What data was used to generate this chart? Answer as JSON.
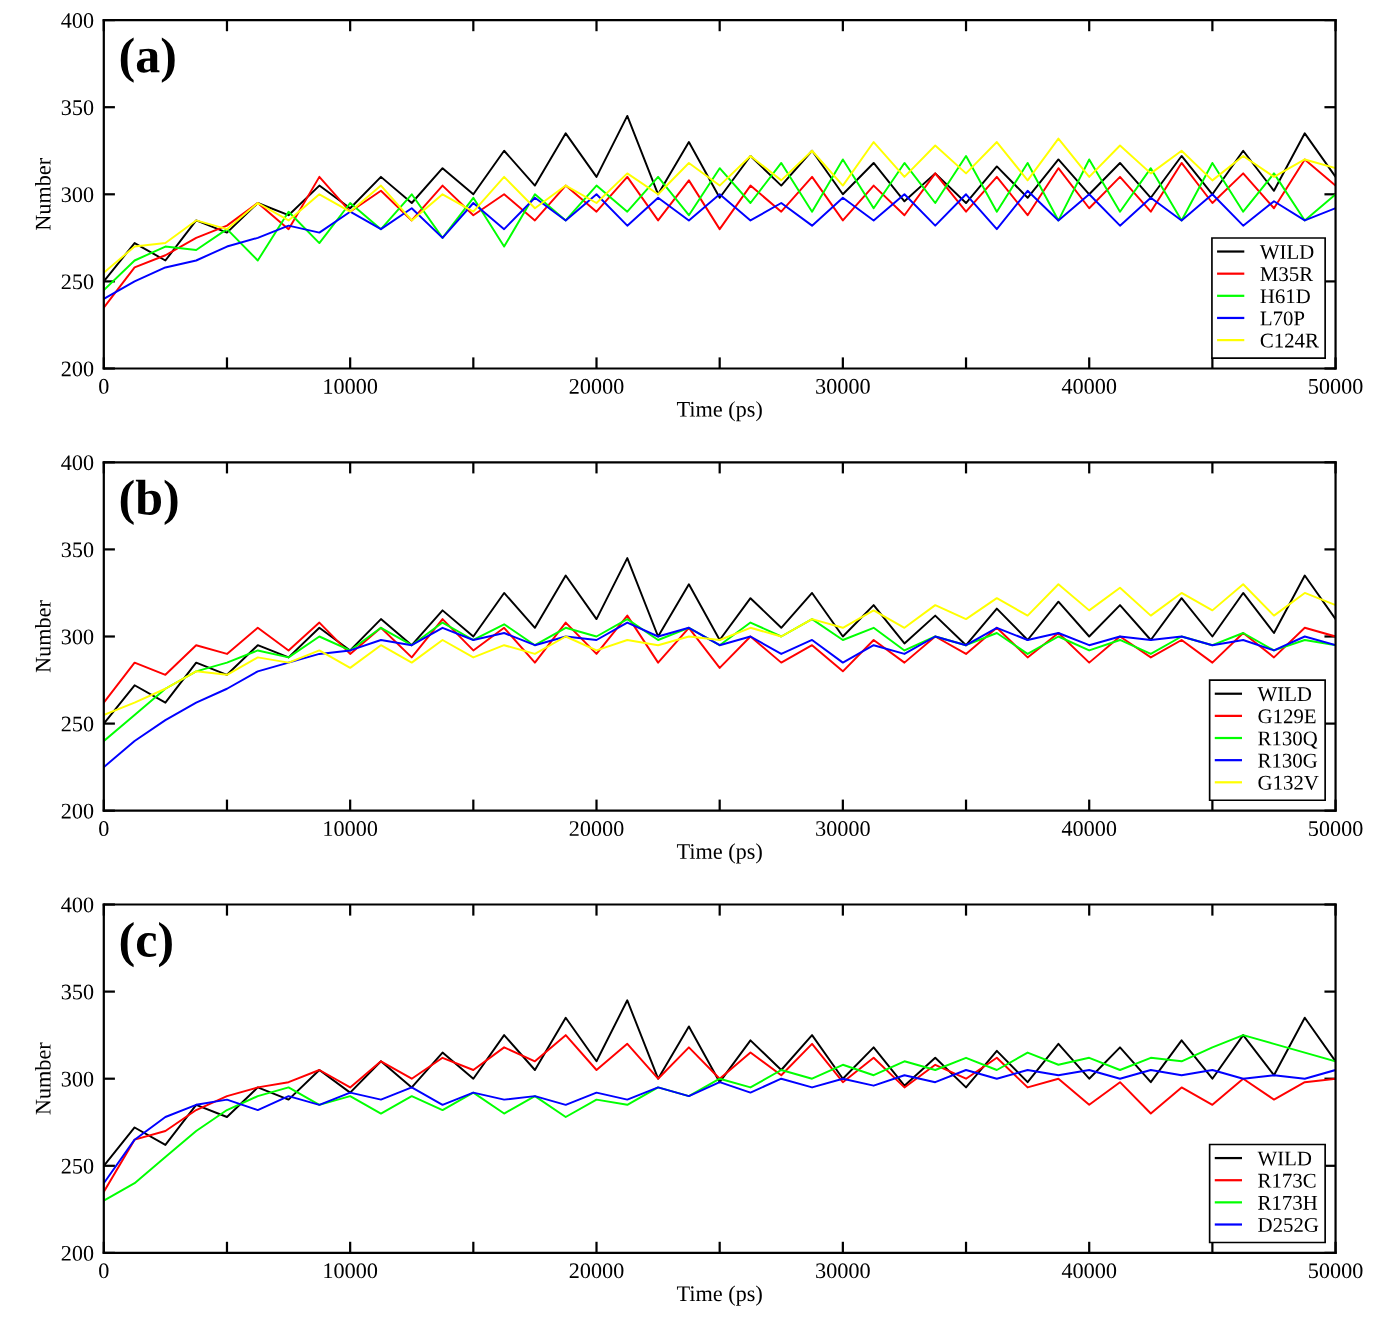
{
  "chart_data": [
    {
      "type": "line",
      "title": "(a)",
      "xlabel": "Time (ps)",
      "ylabel": "Number",
      "legend": "bottom right",
      "grid": false,
      "x": [
        0,
        1250,
        2500,
        3750,
        5000,
        6250,
        7500,
        8750,
        10000,
        11250,
        12500,
        13750,
        15000,
        16250,
        17500,
        18750,
        20000,
        21250,
        22500,
        23750,
        25000,
        26250,
        27500,
        28750,
        30000,
        31250,
        32500,
        33750,
        35000,
        36250,
        37500,
        38750,
        40000,
        41250,
        42500,
        43750,
        45000,
        46250,
        47500,
        48750,
        50000
      ],
      "xlim": [
        0,
        50000
      ],
      "ylim": [
        200,
        400
      ],
      "xticks": [
        0,
        {
          "value": 5000,
          "label": null
        },
        10000,
        {
          "value": 15000,
          "label": null
        },
        20000,
        {
          "value": 25000,
          "label": null
        },
        30000,
        {
          "value": 35000,
          "label": null
        },
        40000,
        {
          "value": 45000,
          "label": null
        },
        50000
      ],
      "yticks": [
        200,
        250,
        300,
        350,
        400
      ],
      "series": [
        {
          "name": "WILD",
          "color": "#000000",
          "values": [
            250,
            272,
            262,
            285,
            278,
            295,
            288,
            305,
            292,
            310,
            295,
            315,
            300,
            325,
            305,
            335,
            310,
            345,
            300,
            330,
            298,
            322,
            305,
            325,
            300,
            318,
            296,
            312,
            295,
            316,
            298,
            320,
            300,
            318,
            298,
            322,
            300,
            325,
            302,
            335,
            310
          ]
        },
        {
          "name": "M35R",
          "color": "#ff0000",
          "values": [
            235,
            258,
            265,
            275,
            282,
            295,
            280,
            310,
            290,
            302,
            285,
            305,
            288,
            300,
            285,
            305,
            290,
            310,
            285,
            308,
            280,
            305,
            290,
            310,
            285,
            305,
            288,
            312,
            290,
            310,
            288,
            315,
            292,
            310,
            290,
            318,
            295,
            312,
            292,
            320,
            305
          ]
        },
        {
          "name": "H61D",
          "color": "#00ff00",
          "values": [
            245,
            262,
            270,
            268,
            280,
            262,
            290,
            272,
            295,
            280,
            300,
            275,
            298,
            270,
            300,
            285,
            305,
            290,
            310,
            288,
            315,
            295,
            318,
            290,
            320,
            292,
            318,
            295,
            322,
            290,
            318,
            285,
            320,
            290,
            315,
            285,
            318,
            290,
            312,
            285,
            300
          ]
        },
        {
          "name": "L70P",
          "color": "#0000ff",
          "values": [
            240,
            250,
            258,
            262,
            270,
            275,
            282,
            278,
            290,
            280,
            292,
            275,
            295,
            280,
            298,
            285,
            300,
            282,
            298,
            285,
            300,
            285,
            295,
            282,
            298,
            285,
            300,
            282,
            300,
            280,
            302,
            285,
            300,
            282,
            298,
            285,
            300,
            282,
            296,
            285,
            292
          ]
        },
        {
          "name": "C124R",
          "color": "#ffff00",
          "values": [
            255,
            270,
            272,
            285,
            280,
            295,
            285,
            300,
            290,
            305,
            285,
            300,
            290,
            310,
            292,
            305,
            295,
            312,
            300,
            318,
            305,
            322,
            308,
            325,
            305,
            330,
            310,
            328,
            312,
            330,
            308,
            332,
            310,
            328,
            312,
            325,
            308,
            322,
            310,
            320,
            315
          ]
        }
      ]
    },
    {
      "type": "line",
      "title": "(b)",
      "xlabel": "Time (ps)",
      "ylabel": "Number",
      "legend": "bottom right",
      "grid": false,
      "x": [
        0,
        1250,
        2500,
        3750,
        5000,
        6250,
        7500,
        8750,
        10000,
        11250,
        12500,
        13750,
        15000,
        16250,
        17500,
        18750,
        20000,
        21250,
        22500,
        23750,
        25000,
        26250,
        27500,
        28750,
        30000,
        31250,
        32500,
        33750,
        35000,
        36250,
        37500,
        38750,
        40000,
        41250,
        42500,
        43750,
        45000,
        46250,
        47500,
        48750,
        50000
      ],
      "xlim": [
        0,
        50000
      ],
      "ylim": [
        200,
        400
      ],
      "xticks": [
        0,
        {
          "value": 5000,
          "label": null
        },
        10000,
        {
          "value": 15000,
          "label": null
        },
        20000,
        {
          "value": 25000,
          "label": null
        },
        30000,
        {
          "value": 35000,
          "label": null
        },
        40000,
        {
          "value": 45000,
          "label": null
        },
        50000
      ],
      "yticks": [
        200,
        250,
        300,
        350,
        400
      ],
      "series": [
        {
          "name": "WILD",
          "color": "#000000",
          "values": [
            250,
            272,
            262,
            285,
            278,
            295,
            288,
            305,
            292,
            310,
            295,
            315,
            300,
            325,
            305,
            335,
            310,
            345,
            300,
            330,
            298,
            322,
            305,
            325,
            300,
            318,
            296,
            312,
            295,
            316,
            298,
            320,
            300,
            318,
            298,
            322,
            300,
            325,
            302,
            335,
            310
          ]
        },
        {
          "name": "G129E",
          "color": "#ff0000",
          "values": [
            262,
            285,
            278,
            295,
            290,
            305,
            292,
            308,
            290,
            305,
            288,
            310,
            292,
            305,
            285,
            308,
            290,
            312,
            285,
            305,
            282,
            300,
            285,
            295,
            280,
            298,
            285,
            300,
            290,
            305,
            288,
            302,
            285,
            300,
            288,
            298,
            285,
            302,
            288,
            305,
            300
          ]
        },
        {
          "name": "R130Q",
          "color": "#00ff00",
          "values": [
            240,
            255,
            270,
            280,
            285,
            292,
            288,
            300,
            292,
            305,
            295,
            308,
            298,
            307,
            295,
            305,
            300,
            310,
            298,
            305,
            295,
            308,
            300,
            310,
            298,
            305,
            292,
            300,
            295,
            302,
            290,
            300,
            292,
            298,
            290,
            300,
            295,
            302,
            292,
            298,
            295
          ]
        },
        {
          "name": "R130G",
          "color": "#0000ff",
          "values": [
            225,
            240,
            252,
            262,
            270,
            280,
            285,
            290,
            292,
            298,
            295,
            305,
            298,
            302,
            295,
            300,
            298,
            308,
            300,
            305,
            295,
            300,
            290,
            298,
            285,
            295,
            290,
            300,
            295,
            305,
            298,
            302,
            295,
            300,
            298,
            300,
            295,
            298,
            292,
            300,
            295
          ]
        },
        {
          "name": "G132V",
          "color": "#ffff00",
          "values": [
            255,
            262,
            270,
            280,
            278,
            288,
            285,
            292,
            282,
            295,
            285,
            298,
            288,
            295,
            290,
            300,
            292,
            298,
            295,
            300,
            298,
            305,
            300,
            310,
            305,
            315,
            305,
            318,
            310,
            322,
            312,
            330,
            315,
            328,
            312,
            325,
            315,
            330,
            312,
            325,
            318
          ]
        }
      ]
    },
    {
      "type": "line",
      "title": "(c)",
      "xlabel": "Time (ps)",
      "ylabel": "Number",
      "legend": "bottom right",
      "grid": false,
      "x": [
        0,
        1250,
        2500,
        3750,
        5000,
        6250,
        7500,
        8750,
        10000,
        11250,
        12500,
        13750,
        15000,
        16250,
        17500,
        18750,
        20000,
        21250,
        22500,
        23750,
        25000,
        26250,
        27500,
        28750,
        30000,
        31250,
        32500,
        33750,
        35000,
        36250,
        37500,
        38750,
        40000,
        41250,
        42500,
        43750,
        45000,
        46250,
        47500,
        48750,
        50000
      ],
      "xlim": [
        0,
        50000
      ],
      "ylim": [
        200,
        400
      ],
      "xticks": [
        0,
        {
          "value": 5000,
          "label": null
        },
        10000,
        {
          "value": 15000,
          "label": null
        },
        20000,
        {
          "value": 25000,
          "label": null
        },
        30000,
        {
          "value": 35000,
          "label": null
        },
        40000,
        {
          "value": 45000,
          "label": null
        },
        50000
      ],
      "yticks": [
        200,
        250,
        300,
        350,
        400
      ],
      "series": [
        {
          "name": "WILD",
          "color": "#000000",
          "values": [
            250,
            272,
            262,
            285,
            278,
            295,
            288,
            305,
            292,
            310,
            295,
            315,
            300,
            325,
            305,
            335,
            310,
            345,
            300,
            330,
            298,
            322,
            305,
            325,
            300,
            318,
            296,
            312,
            295,
            316,
            298,
            320,
            300,
            318,
            298,
            322,
            300,
            325,
            302,
            335,
            310
          ]
        },
        {
          "name": "R173C",
          "color": "#ff0000",
          "values": [
            235,
            265,
            270,
            282,
            290,
            295,
            298,
            305,
            295,
            310,
            300,
            312,
            305,
            318,
            310,
            325,
            305,
            320,
            300,
            318,
            300,
            315,
            302,
            320,
            298,
            312,
            295,
            308,
            300,
            312,
            295,
            300,
            285,
            298,
            280,
            295,
            285,
            300,
            288,
            298,
            300
          ]
        },
        {
          "name": "R173H",
          "color": "#00ff00",
          "values": [
            230,
            240,
            255,
            270,
            282,
            290,
            295,
            285,
            290,
            280,
            290,
            282,
            292,
            280,
            290,
            278,
            288,
            285,
            295,
            290,
            300,
            295,
            305,
            300,
            308,
            302,
            310,
            305,
            312,
            305,
            315,
            308,
            312,
            305,
            312,
            310,
            318,
            325,
            320,
            315,
            310
          ]
        },
        {
          "name": "D252G",
          "color": "#0000ff",
          "values": [
            240,
            265,
            278,
            285,
            288,
            282,
            290,
            285,
            292,
            288,
            295,
            285,
            292,
            288,
            290,
            285,
            292,
            288,
            295,
            290,
            298,
            292,
            300,
            295,
            300,
            296,
            302,
            298,
            305,
            300,
            305,
            302,
            305,
            300,
            305,
            302,
            305,
            300,
            302,
            300,
            305
          ]
        }
      ]
    }
  ]
}
